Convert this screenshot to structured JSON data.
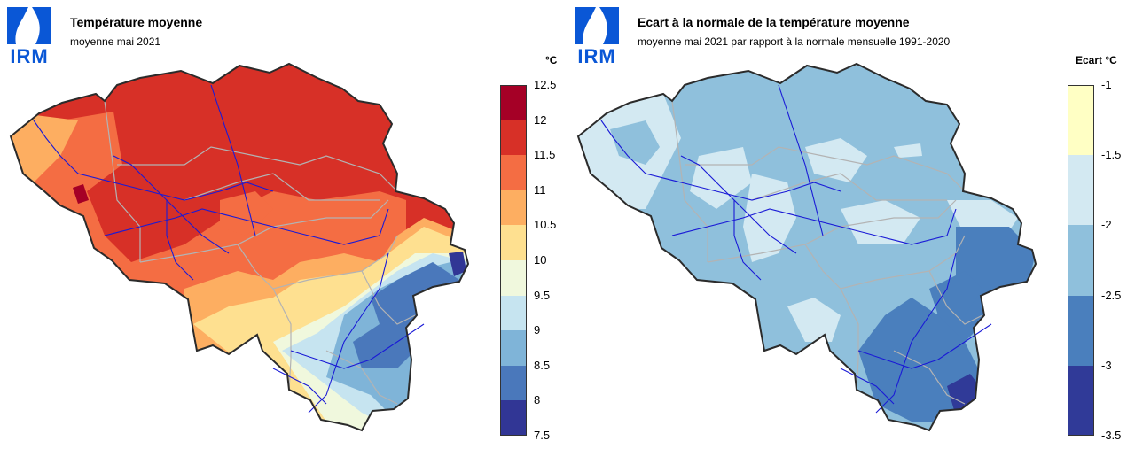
{
  "logo_text": "IRM",
  "panels": [
    {
      "title": "Température moyenne",
      "subtitle": "moyenne mai 2021",
      "unit": "°C",
      "legend": {
        "ticks": [
          "12.5",
          "12",
          "11.5",
          "11",
          "10.5",
          "10",
          "9.5",
          "9",
          "8.5",
          "8",
          "7.5"
        ],
        "colors": [
          "#a50026",
          "#d73027",
          "#f46d43",
          "#fdae61",
          "#fee090",
          "#f0f8dd",
          "#c6e4f0",
          "#7fb4d8",
          "#4a78bb",
          "#313695"
        ]
      }
    },
    {
      "title": "Ecart à la normale de la température moyenne",
      "subtitle": "moyenne mai 2021 par rapport à la normale mensuelle 1991-2020",
      "unit": "Ecart  °C",
      "legend": {
        "ticks": [
          "-1",
          "-1.5",
          "-2",
          "-2.5",
          "-3",
          "-3.5"
        ],
        "colors": [
          "#ffffc4",
          "#d3e9f2",
          "#8fc0dc",
          "#4a7fbd",
          "#303a98"
        ]
      }
    }
  ],
  "map_colors": {
    "border": "#2b2b2b",
    "province": "#b3b3b3",
    "river": "#1a1ad6",
    "logo_blue": "#0a57d6"
  }
}
